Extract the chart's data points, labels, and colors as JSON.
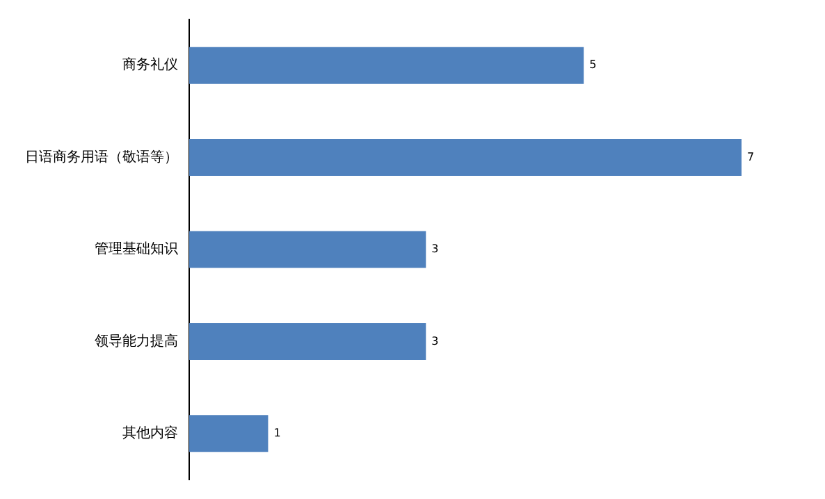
{
  "chart_data": {
    "type": "bar",
    "orientation": "horizontal",
    "categories": [
      "商务礼仪",
      "日语商务用语（敬语等）",
      "管理基础知识",
      "领导能力提高",
      "其他内容"
    ],
    "values": [
      5,
      7,
      3,
      3,
      1
    ],
    "color": "#4f81bd",
    "data_labels": true,
    "grid": false,
    "legend": false,
    "tick_labels": "y"
  }
}
